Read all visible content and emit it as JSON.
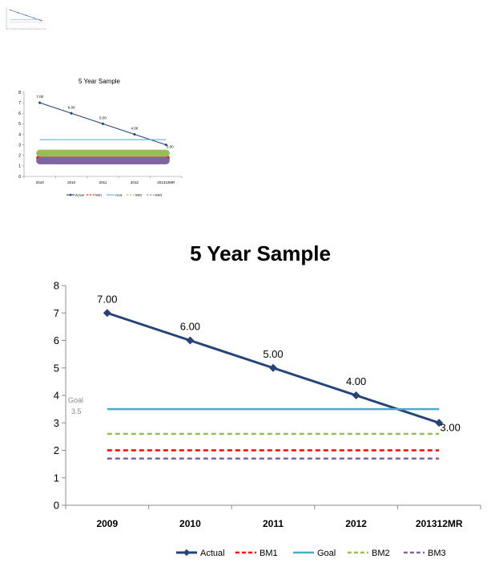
{
  "chart_data": [
    {
      "type": "line",
      "title": "",
      "categories": [
        "",
        "",
        "",
        "",
        ""
      ],
      "series": [
        {
          "name": "",
          "values": [
            7,
            6,
            5,
            4,
            3
          ],
          "color": "#264478",
          "marker": "diamond"
        },
        {
          "name": "",
          "values": [
            3.5,
            3.5,
            3.5,
            3.5,
            3.5
          ],
          "color": "#4BACC6"
        },
        {
          "name": "",
          "values": [
            2.5,
            2.5,
            2.5,
            2.5,
            2.5
          ],
          "color": "#FF7F7F",
          "style": "dotted"
        }
      ],
      "ylim": [
        0,
        8
      ]
    },
    {
      "type": "line",
      "title": "5 Year Sample",
      "categories": [
        "2010",
        "2010",
        "2011",
        "2012",
        "201312MR"
      ],
      "series": [
        {
          "name": "Actual",
          "values": [
            7.0,
            6.0,
            5.0,
            4.0,
            3.0
          ],
          "data_labels": [
            "7.00",
            "6.00",
            "5.00",
            "4.00",
            "3.00"
          ],
          "color": "#264478",
          "marker": "diamond"
        },
        {
          "name": "BM1",
          "values": [
            1.7,
            1.7,
            1.7,
            1.7,
            1.7
          ],
          "color": "#FF0000",
          "style": "band"
        },
        {
          "name": "Goal",
          "values": [
            3.5,
            3.5,
            3.5,
            3.5,
            3.5
          ],
          "color": "#4BACC6"
        },
        {
          "name": "BM2",
          "values": [
            2.2,
            2.2,
            2.2,
            2.2,
            2.2
          ],
          "color": "#9BBB59",
          "style": "band"
        },
        {
          "name": "BM3",
          "values": [
            1.5,
            1.5,
            1.5,
            1.5,
            1.5
          ],
          "color": "#8064A2",
          "style": "band"
        }
      ],
      "yticks": [
        "0",
        "1",
        "2",
        "3",
        "4",
        "5",
        "6",
        "7",
        "8"
      ],
      "ylim": [
        0,
        8
      ],
      "legend_position": "bottom"
    },
    {
      "type": "line",
      "title": "5 Year Sample",
      "categories": [
        "2009",
        "2010",
        "2011",
        "2012",
        "201312MR"
      ],
      "series": [
        {
          "name": "Actual",
          "values": [
            7.0,
            6.0,
            5.0,
            4.0,
            3.0
          ],
          "data_labels": [
            "7.00",
            "6.00",
            "5.00",
            "4.00",
            "3.00"
          ],
          "color": "#264478",
          "marker": "diamond"
        },
        {
          "name": "BM1",
          "values": [
            2.0,
            2.0,
            2.0,
            2.0,
            2.0
          ],
          "color": "#FF0000",
          "style": "dashed"
        },
        {
          "name": "Goal",
          "values": [
            3.5,
            3.5,
            3.5,
            3.5,
            3.5
          ],
          "color": "#4BACC6"
        },
        {
          "name": "BM2",
          "values": [
            2.6,
            2.6,
            2.6,
            2.6,
            2.6
          ],
          "color": "#9BBB59",
          "style": "dashed"
        },
        {
          "name": "BM3",
          "values": [
            1.7,
            1.7,
            1.7,
            1.7,
            1.7
          ],
          "color": "#8064A2",
          "style": "dashed"
        }
      ],
      "annotation": {
        "label": "Goal",
        "value": "3.5"
      },
      "yticks": [
        "0",
        "1",
        "2",
        "3",
        "4",
        "5",
        "6",
        "7",
        "8"
      ],
      "ylim": [
        0,
        8
      ],
      "legend_position": "bottom"
    }
  ]
}
